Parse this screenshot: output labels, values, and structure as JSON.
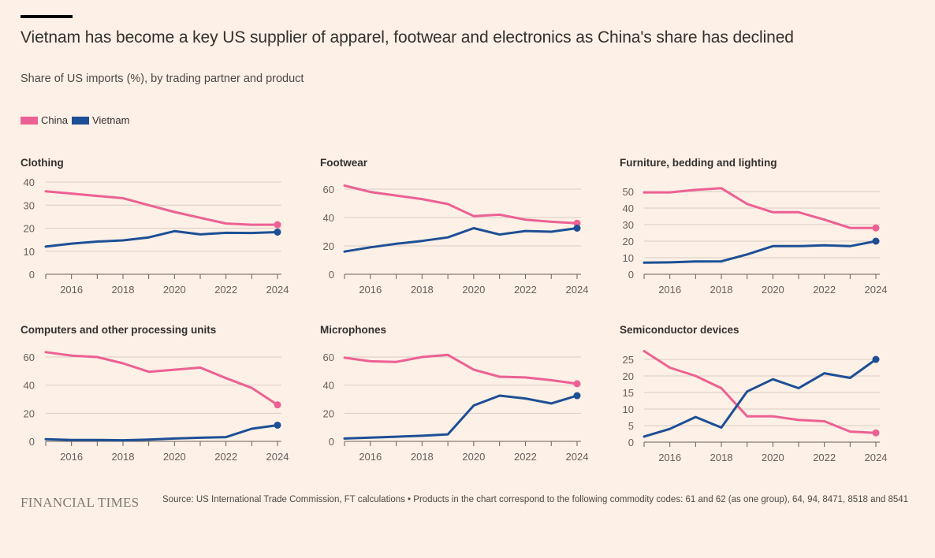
{
  "header": {
    "title": "Vietnam has become a key US supplier of apparel, footwear and electronics as China's share has declined",
    "subtitle": "Share of US imports (%), by trading partner and product"
  },
  "legend": [
    {
      "label": "China",
      "color": "#ec6193"
    },
    {
      "label": "Vietnam",
      "color": "#1d4f96"
    }
  ],
  "footer": {
    "logo": "FINANCIAL TIMES",
    "source": "Source: US International Trade Commission, FT calculations • Products in the chart correspond to the following commodity codes: 61 and 62 (as one group), 64, 94, 8471, 8518 and 8541"
  },
  "chart_data": [
    {
      "type": "line",
      "title": "Clothing",
      "x": [
        2015,
        2016,
        2017,
        2018,
        2019,
        2020,
        2021,
        2022,
        2023,
        2024
      ],
      "xtick_labels": [
        "2016",
        "2018",
        "2020",
        "2022",
        "2024"
      ],
      "ylim": [
        0,
        40
      ],
      "yticks": [
        0,
        10,
        20,
        30,
        40
      ],
      "grid": true,
      "series": [
        {
          "name": "China",
          "values": [
            36,
            35,
            34,
            33,
            30,
            27,
            24.5,
            22,
            21.5,
            21.5
          ]
        },
        {
          "name": "Vietnam",
          "values": [
            12,
            13.3,
            14.2,
            14.7,
            16,
            18.7,
            17.3,
            18,
            17.9,
            18.3
          ]
        }
      ]
    },
    {
      "type": "line",
      "title": "Footwear",
      "x": [
        2015,
        2016,
        2017,
        2018,
        2019,
        2020,
        2021,
        2022,
        2023,
        2024
      ],
      "xtick_labels": [
        "2016",
        "2018",
        "2020",
        "2022",
        "2024"
      ],
      "ylim": [
        0,
        60
      ],
      "yticks": [
        0,
        20,
        40,
        60
      ],
      "grid": true,
      "series": [
        {
          "name": "China",
          "values": [
            62.5,
            58,
            55.5,
            53,
            49.5,
            41,
            42,
            38.5,
            37,
            36
          ]
        },
        {
          "name": "Vietnam",
          "values": [
            16,
            19,
            21.5,
            23.5,
            26,
            32.5,
            28,
            30.5,
            30,
            32.5
          ]
        }
      ]
    },
    {
      "type": "line",
      "title": "Furniture, bedding and lighting",
      "x": [
        2015,
        2016,
        2017,
        2018,
        2019,
        2020,
        2021,
        2022,
        2023,
        2024
      ],
      "xtick_labels": [
        "2016",
        "2018",
        "2020",
        "2022",
        "2024"
      ],
      "ylim": [
        0,
        50
      ],
      "yticks": [
        0,
        10,
        20,
        30,
        40,
        50
      ],
      "grid": true,
      "series": [
        {
          "name": "China",
          "values": [
            49.5,
            49.5,
            51,
            52,
            42.5,
            37.5,
            37.5,
            33,
            28,
            28
          ]
        },
        {
          "name": "Vietnam",
          "values": [
            7,
            7.2,
            7.7,
            7.8,
            12,
            17,
            17,
            17.5,
            17,
            20
          ]
        }
      ]
    },
    {
      "type": "line",
      "title": "Computers and other processing units",
      "x": [
        2015,
        2016,
        2017,
        2018,
        2019,
        2020,
        2021,
        2022,
        2023,
        2024
      ],
      "xtick_labels": [
        "2016",
        "2018",
        "2020",
        "2022",
        "2024"
      ],
      "ylim": [
        0,
        60
      ],
      "yticks": [
        0,
        20,
        40,
        60
      ],
      "grid": true,
      "series": [
        {
          "name": "China",
          "values": [
            63.5,
            61,
            60,
            55.5,
            49.5,
            51,
            52.5,
            45,
            38,
            26
          ]
        },
        {
          "name": "Vietnam",
          "values": [
            1.5,
            1,
            1,
            0.8,
            1.3,
            2,
            2.6,
            3,
            9,
            11.5
          ]
        }
      ]
    },
    {
      "type": "line",
      "title": "Microphones",
      "x": [
        2015,
        2016,
        2017,
        2018,
        2019,
        2020,
        2021,
        2022,
        2023,
        2024
      ],
      "xtick_labels": [
        "2016",
        "2018",
        "2020",
        "2022",
        "2024"
      ],
      "ylim": [
        0,
        60
      ],
      "yticks": [
        0,
        20,
        40,
        60
      ],
      "grid": true,
      "series": [
        {
          "name": "China",
          "values": [
            59.5,
            57,
            56.5,
            60,
            61.5,
            51,
            46,
            45.5,
            43.5,
            41
          ]
        },
        {
          "name": "Vietnam",
          "values": [
            2,
            2.7,
            3.3,
            4,
            5,
            25.5,
            32.5,
            30.5,
            27,
            32.5
          ]
        }
      ]
    },
    {
      "type": "line",
      "title": "Semiconductor devices",
      "x": [
        2015,
        2016,
        2017,
        2018,
        2019,
        2020,
        2021,
        2022,
        2023,
        2024
      ],
      "xtick_labels": [
        "2016",
        "2018",
        "2020",
        "2022",
        "2024"
      ],
      "ylim": [
        0,
        25
      ],
      "yticks": [
        0,
        5,
        10,
        15,
        20,
        25
      ],
      "grid": true,
      "series": [
        {
          "name": "China",
          "values": [
            27.5,
            22.5,
            20,
            16.3,
            7.8,
            7.8,
            6.7,
            6.3,
            3.2,
            2.8
          ]
        },
        {
          "name": "Vietnam",
          "values": [
            1.7,
            4,
            7.6,
            4.4,
            15.3,
            19,
            16.3,
            20.8,
            19.4,
            25
          ]
        }
      ]
    }
  ]
}
